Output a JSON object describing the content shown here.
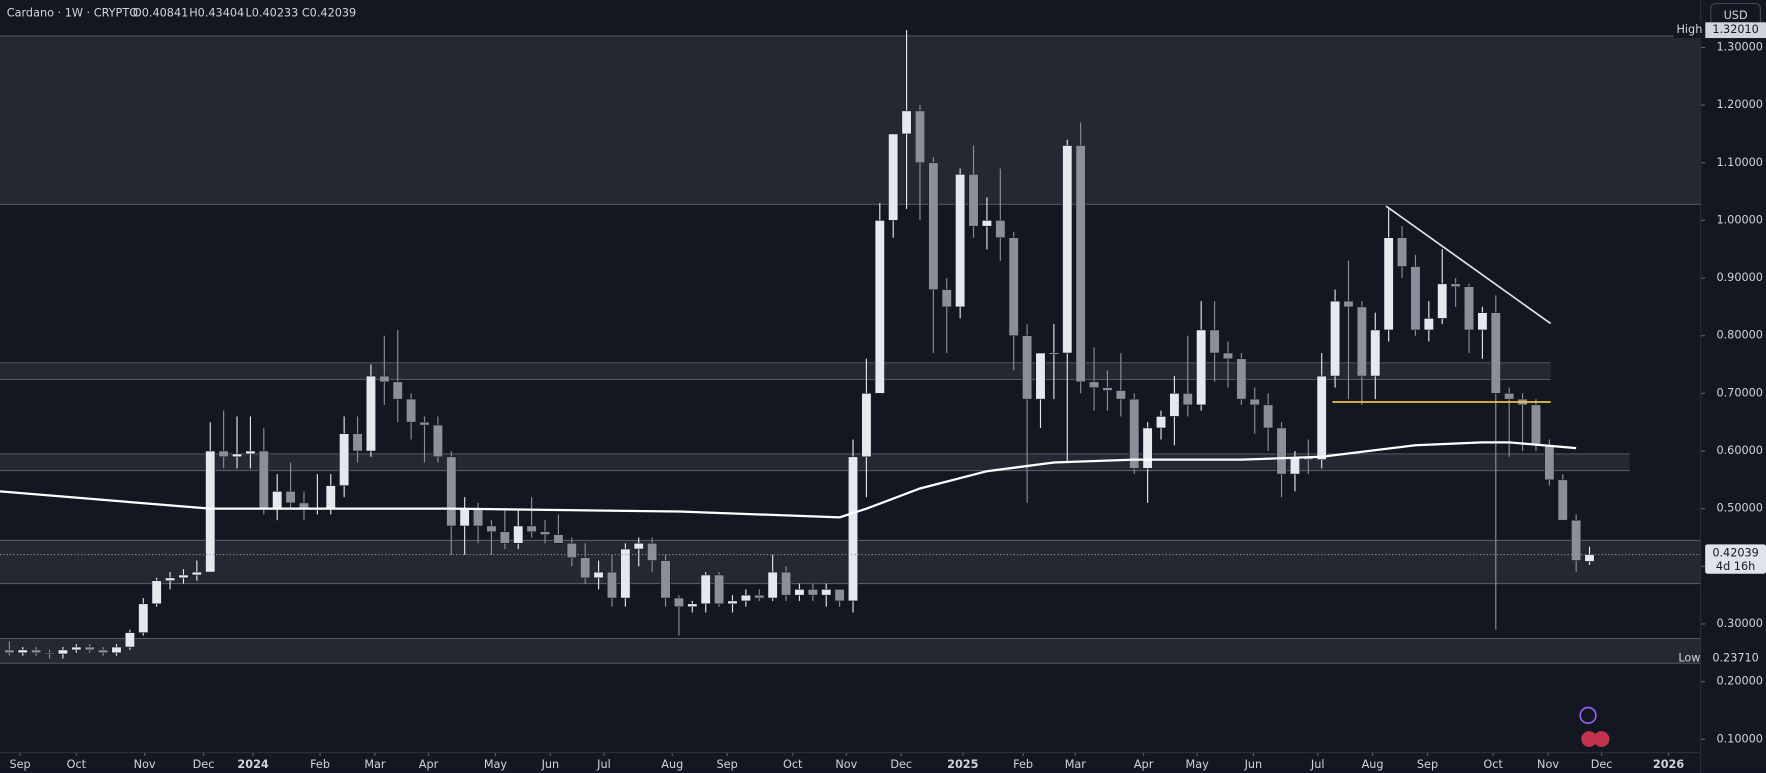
{
  "header": {
    "symbol": "Cardano · 1W · CRYPTO",
    "open": "O0.40841",
    "high": "H0.43404",
    "low": "L0.40233",
    "close": "C0.42039"
  },
  "currency": "USD",
  "last_price": "0.42039",
  "countdown": "4d 16h",
  "high_marker": {
    "name": "High",
    "value": "1.32010"
  },
  "low_marker": {
    "name": "Low",
    "value": "0.23710"
  },
  "chart_data": {
    "type": "candlestick",
    "open": [
      0.255,
      0.25,
      0.255,
      0.25,
      0.248,
      0.255,
      0.26,
      0.255,
      0.25,
      0.26,
      0.285,
      0.335,
      0.375,
      0.38,
      0.385,
      0.39,
      0.6,
      0.59,
      0.595,
      0.6,
      0.5,
      0.53,
      0.51,
      0.5,
      0.5,
      0.54,
      0.63,
      0.6,
      0.73,
      0.72,
      0.69,
      0.65,
      0.645,
      0.59,
      0.47,
      0.5,
      0.47,
      0.46,
      0.44,
      0.47,
      0.46,
      0.455,
      0.44,
      0.415,
      0.38,
      0.39,
      0.345,
      0.43,
      0.44,
      0.41,
      0.345,
      0.33,
      0.335,
      0.385,
      0.335,
      0.34,
      0.35,
      0.345,
      0.39,
      0.35,
      0.36,
      0.35,
      0.36,
      0.34,
      0.59,
      0.7,
      1.0,
      1.15,
      1.19,
      1.1,
      0.88,
      0.85,
      1.08,
      0.99,
      1.0,
      0.97,
      0.8,
      0.69,
      0.77,
      0.77,
      1.13,
      0.72,
      0.71,
      0.705,
      0.69,
      0.57,
      0.64,
      0.66,
      0.7,
      0.68,
      0.81,
      0.77,
      0.76,
      0.69,
      0.68,
      0.64,
      0.56,
      0.59,
      0.585,
      0.73,
      0.86,
      0.85,
      0.73,
      0.81,
      0.97,
      0.92,
      0.81,
      0.83,
      0.89,
      0.885,
      0.81,
      0.84,
      0.7,
      0.69,
      0.68,
      0.61,
      0.55,
      0.48,
      0.40841
    ],
    "high": [
      0.27,
      0.26,
      0.26,
      0.255,
      0.26,
      0.265,
      0.265,
      0.26,
      0.265,
      0.29,
      0.345,
      0.38,
      0.39,
      0.395,
      0.41,
      0.65,
      0.67,
      0.66,
      0.66,
      0.64,
      0.56,
      0.58,
      0.53,
      0.56,
      0.56,
      0.66,
      0.66,
      0.75,
      0.8,
      0.81,
      0.7,
      0.66,
      0.66,
      0.6,
      0.52,
      0.51,
      0.48,
      0.5,
      0.5,
      0.52,
      0.48,
      0.49,
      0.45,
      0.44,
      0.41,
      0.42,
      0.44,
      0.45,
      0.45,
      0.42,
      0.35,
      0.34,
      0.39,
      0.39,
      0.35,
      0.36,
      0.36,
      0.42,
      0.4,
      0.37,
      0.37,
      0.37,
      0.36,
      0.62,
      0.76,
      1.03,
      1.15,
      1.33,
      1.2,
      1.11,
      0.9,
      1.09,
      1.13,
      1.04,
      1.09,
      0.98,
      0.82,
      0.76,
      0.82,
      1.14,
      1.17,
      0.78,
      0.74,
      0.77,
      0.7,
      0.65,
      0.67,
      0.73,
      0.8,
      0.86,
      0.86,
      0.79,
      0.77,
      0.71,
      0.7,
      0.65,
      0.6,
      0.62,
      0.77,
      0.88,
      0.93,
      0.86,
      0.84,
      1.02,
      0.99,
      0.94,
      0.86,
      0.95,
      0.9,
      0.89,
      0.85,
      0.87,
      0.71,
      0.7,
      0.69,
      0.62,
      0.56,
      0.49,
      0.43404
    ],
    "low": [
      0.245,
      0.245,
      0.245,
      0.24,
      0.24,
      0.25,
      0.25,
      0.245,
      0.245,
      0.255,
      0.28,
      0.33,
      0.36,
      0.37,
      0.375,
      0.39,
      0.57,
      0.57,
      0.57,
      0.49,
      0.48,
      0.5,
      0.48,
      0.49,
      0.49,
      0.52,
      0.58,
      0.59,
      0.68,
      0.65,
      0.62,
      0.58,
      0.58,
      0.42,
      0.42,
      0.44,
      0.42,
      0.43,
      0.43,
      0.45,
      0.44,
      0.44,
      0.4,
      0.37,
      0.36,
      0.33,
      0.33,
      0.4,
      0.39,
      0.33,
      0.28,
      0.32,
      0.32,
      0.33,
      0.32,
      0.33,
      0.34,
      0.34,
      0.34,
      0.34,
      0.34,
      0.33,
      0.33,
      0.32,
      0.52,
      0.7,
      0.97,
      1.02,
      1.0,
      0.77,
      0.77,
      0.83,
      0.97,
      0.95,
      0.93,
      0.74,
      0.51,
      0.64,
      0.69,
      0.58,
      0.7,
      0.67,
      0.67,
      0.66,
      0.56,
      0.51,
      0.62,
      0.61,
      0.66,
      0.67,
      0.72,
      0.71,
      0.68,
      0.63,
      0.6,
      0.52,
      0.53,
      0.56,
      0.57,
      0.71,
      0.69,
      0.68,
      0.69,
      0.79,
      0.9,
      0.8,
      0.79,
      0.82,
      0.85,
      0.77,
      0.76,
      0.29,
      0.59,
      0.6,
      0.6,
      0.54,
      0.48,
      0.39,
      0.40233
    ],
    "close": [
      0.25,
      0.255,
      0.25,
      0.248,
      0.255,
      0.26,
      0.255,
      0.25,
      0.26,
      0.285,
      0.335,
      0.375,
      0.38,
      0.385,
      0.39,
      0.6,
      0.59,
      0.595,
      0.6,
      0.5,
      0.53,
      0.51,
      0.5,
      0.5,
      0.54,
      0.63,
      0.6,
      0.73,
      0.72,
      0.69,
      0.65,
      0.645,
      0.59,
      0.47,
      0.5,
      0.47,
      0.46,
      0.44,
      0.47,
      0.46,
      0.455,
      0.44,
      0.415,
      0.38,
      0.39,
      0.345,
      0.43,
      0.44,
      0.41,
      0.345,
      0.33,
      0.335,
      0.385,
      0.335,
      0.34,
      0.35,
      0.345,
      0.39,
      0.35,
      0.36,
      0.35,
      0.36,
      0.34,
      0.59,
      0.7,
      1.0,
      1.15,
      1.19,
      1.1,
      0.88,
      0.85,
      1.08,
      0.99,
      1.0,
      0.97,
      0.8,
      0.69,
      0.77,
      0.77,
      1.13,
      0.72,
      0.71,
      0.705,
      0.69,
      0.57,
      0.64,
      0.66,
      0.7,
      0.68,
      0.81,
      0.77,
      0.76,
      0.69,
      0.68,
      0.64,
      0.56,
      0.59,
      0.585,
      0.73,
      0.86,
      0.85,
      0.73,
      0.81,
      0.97,
      0.92,
      0.81,
      0.83,
      0.89,
      0.885,
      0.81,
      0.84,
      0.7,
      0.69,
      0.68,
      0.61,
      0.55,
      0.48,
      0.41,
      0.42039
    ],
    "up_color": "#e6e8ee",
    "down_color": "#8c8f99",
    "moving_average": {
      "color": "#ffffff",
      "x": [
        -0.7,
        15,
        25,
        33,
        50,
        62,
        64,
        68,
        73,
        78,
        84,
        92,
        98,
        105,
        110,
        112,
        117
      ],
      "values": [
        0.53,
        0.5,
        0.5,
        0.5,
        0.495,
        0.485,
        0.5,
        0.535,
        0.565,
        0.58,
        0.585,
        0.585,
        0.59,
        0.61,
        0.615,
        0.615,
        0.605
      ]
    },
    "zones": [
      {
        "top": 1.32,
        "bottom": 1.028,
        "end": 126.3
      },
      {
        "top": 0.753,
        "bottom": 0.724,
        "end": 115.1
      },
      {
        "top": 0.595,
        "bottom": 0.566,
        "end": 121
      },
      {
        "top": 0.445,
        "bottom": 0.37,
        "end": 126.3
      },
      {
        "top": 0.275,
        "bottom": 0.232,
        "end": 126.3
      }
    ],
    "lines": [
      {
        "color": "#e0e3eb",
        "x": [
          102.8,
          115.1
        ],
        "values": [
          1.025,
          0.821
        ]
      },
      {
        "color": "#e8c547",
        "x": [
          98.8,
          115.1
        ],
        "values": [
          0.685,
          0.685
        ]
      }
    ],
    "xlim": [
      -0.7,
      126.3
    ],
    "xticks": [
      {
        "value": 0.8,
        "label": "Sep"
      },
      {
        "value": 5,
        "label": "Oct"
      },
      {
        "value": 10.1,
        "label": "Nov"
      },
      {
        "value": 14.5,
        "label": "Dec"
      },
      {
        "value": 18.2,
        "label": "2024"
      },
      {
        "value": 23.2,
        "label": "Feb"
      },
      {
        "value": 27.3,
        "label": "Mar"
      },
      {
        "value": 31.3,
        "label": "Apr"
      },
      {
        "value": 36.3,
        "label": "May"
      },
      {
        "value": 40.4,
        "label": "Jun"
      },
      {
        "value": 44.4,
        "label": "Jul"
      },
      {
        "value": 49.5,
        "label": "Aug"
      },
      {
        "value": 53.6,
        "label": "Sep"
      },
      {
        "value": 58.5,
        "label": "Oct"
      },
      {
        "value": 62.5,
        "label": "Nov"
      },
      {
        "value": 66.6,
        "label": "Dec"
      },
      {
        "value": 71.2,
        "label": "2025"
      },
      {
        "value": 75.7,
        "label": "Feb"
      },
      {
        "value": 79.6,
        "label": "Mar"
      },
      {
        "value": 84.7,
        "label": "Apr"
      },
      {
        "value": 88.7,
        "label": "May"
      },
      {
        "value": 92.9,
        "label": "Jun"
      },
      {
        "value": 97.7,
        "label": "Jul"
      },
      {
        "value": 101.8,
        "label": "Aug"
      },
      {
        "value": 105.9,
        "label": "Sep"
      },
      {
        "value": 110.8,
        "label": "Oct"
      },
      {
        "value": 114.9,
        "label": "Nov"
      },
      {
        "value": 118.9,
        "label": "Dec"
      },
      {
        "value": 123.9,
        "label": "2026"
      }
    ],
    "ylim": [
      0.077,
      1.382
    ],
    "yticks": [
      {
        "value": 0.1,
        "label": "0.10000"
      },
      {
        "value": 0.2,
        "label": "0.20000"
      },
      {
        "value": 0.3,
        "label": "0.30000"
      },
      {
        "value": 0.4,
        "label": "0.40000"
      },
      {
        "value": 0.5,
        "label": "0.50000"
      },
      {
        "value": 0.6,
        "label": "0.60000"
      },
      {
        "value": 0.7,
        "label": "0.70000"
      },
      {
        "value": 0.8,
        "label": "0.80000"
      },
      {
        "value": 0.9,
        "label": "0.90000"
      },
      {
        "value": 1.0,
        "label": "1.00000"
      },
      {
        "value": 1.1,
        "label": "1.10000"
      },
      {
        "value": 1.2,
        "label": "1.20000"
      },
      {
        "value": 1.3,
        "label": "1.30000"
      }
    ]
  }
}
